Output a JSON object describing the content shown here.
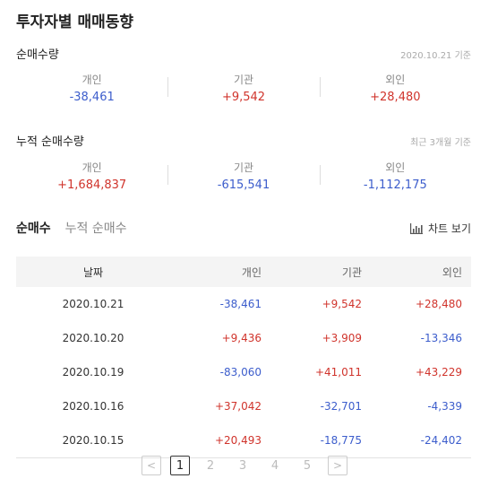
{
  "title": "투자자별 매매동향",
  "net_volume": {
    "title": "순매수량",
    "date": "2020.10.21 기준",
    "items": [
      {
        "label": "개인",
        "value": "-38,461"
      },
      {
        "label": "기관",
        "value": "+9,542"
      },
      {
        "label": "외인",
        "value": "+28,480"
      }
    ]
  },
  "cumulative": {
    "title": "누적 순매수량",
    "date": "최근 3개월 기준",
    "items": [
      {
        "label": "개인",
        "value": "+1,684,837"
      },
      {
        "label": "기관",
        "value": "-615,541"
      },
      {
        "label": "외인",
        "value": "-1,112,175"
      }
    ]
  },
  "tabs": [
    "순매수",
    "누적 순매수"
  ],
  "chart_button": "차트 보기",
  "chart_icon": "bar-chart-icon",
  "table": {
    "headers": [
      "날짜",
      "개인",
      "기관",
      "외인"
    ],
    "rows": [
      [
        "2020.10.21",
        "-38,461",
        "+9,542",
        "+28,480"
      ],
      [
        "2020.10.20",
        "+9,436",
        "+3,909",
        "-13,346"
      ],
      [
        "2020.10.19",
        "-83,060",
        "+41,011",
        "+43,229"
      ],
      [
        "2020.10.16",
        "+37,042",
        "-32,701",
        "-4,339"
      ],
      [
        "2020.10.15",
        "+20,493",
        "-18,775",
        "-24,402"
      ]
    ]
  },
  "pagination": {
    "prev": "<",
    "next": ">",
    "pages": [
      "1",
      "2",
      "3",
      "4",
      "5"
    ],
    "current": "1"
  },
  "colors": {
    "positive": "#d0342c",
    "negative": "#3c5dcc"
  }
}
